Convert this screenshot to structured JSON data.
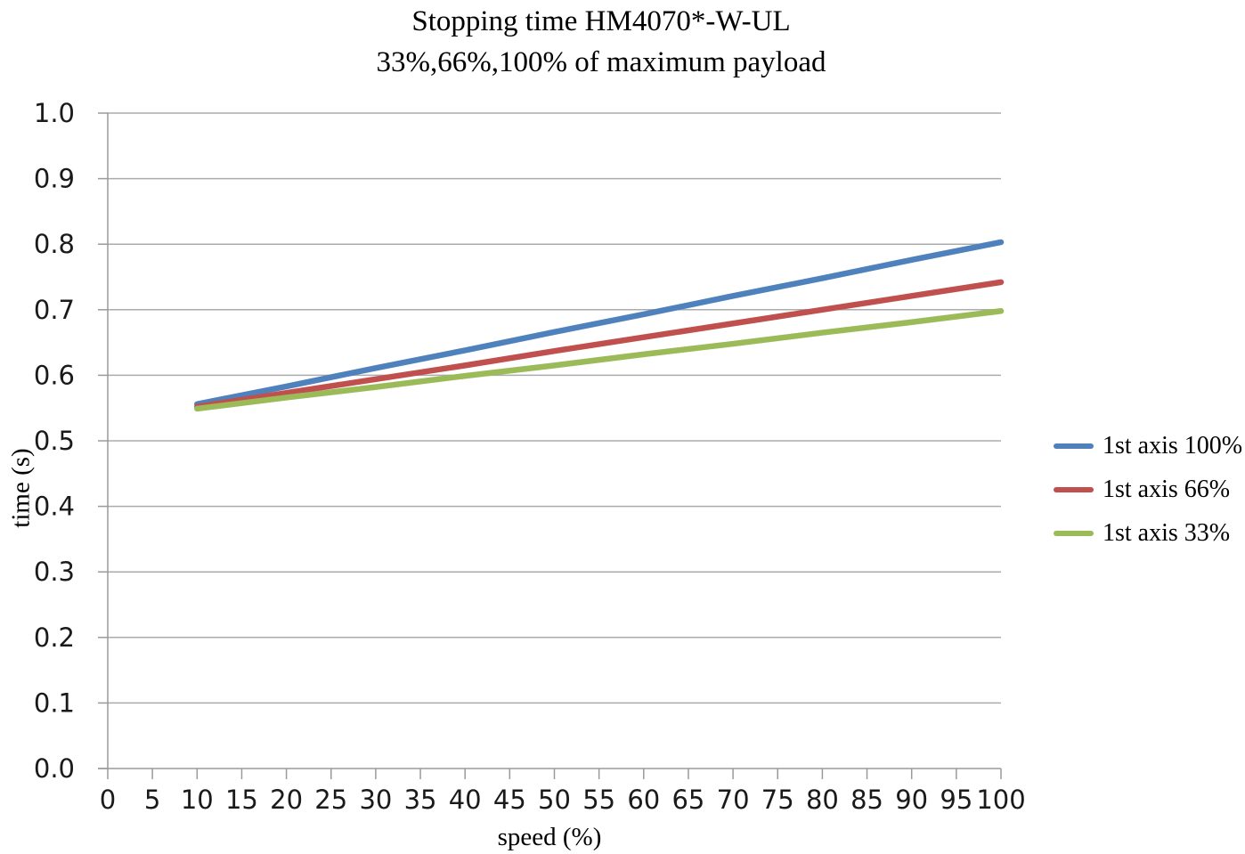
{
  "title": {
    "line1": "Stopping time HM4070*-W-UL",
    "line2": "33%,66%,100% of maximum payload"
  },
  "colors": {
    "gridline": "#ABABAB",
    "axis": "#9A9A9A",
    "tick_text": "#1a1a1a",
    "background": "#ffffff"
  },
  "chart_data": {
    "type": "line",
    "title": "Stopping time HM4070*-W-UL",
    "subtitle": "33%,66%,100% of maximum payload",
    "xlabel": "speed (%)",
    "ylabel": "time (s)",
    "xlim": [
      0,
      100
    ],
    "ylim": [
      0.0,
      1.0
    ],
    "grid": "horizontal",
    "legend_position": "right",
    "x_tick_values": [
      0,
      5,
      10,
      15,
      20,
      25,
      30,
      35,
      40,
      45,
      50,
      55,
      60,
      65,
      70,
      75,
      80,
      85,
      90,
      95,
      100
    ],
    "x_tick_labels": [
      "0",
      "5",
      "10",
      "15",
      "20",
      "25",
      "30",
      "35",
      "40",
      "45",
      "50",
      "55",
      "60",
      "65",
      "70",
      "75",
      "80",
      "85",
      "90",
      "95",
      "100"
    ],
    "y_tick_values": [
      0.0,
      0.1,
      0.2,
      0.3,
      0.4,
      0.5,
      0.6,
      0.7,
      0.8,
      0.9,
      1.0
    ],
    "y_tick_labels": [
      "0.0",
      "0.1",
      "0.2",
      "0.3",
      "0.4",
      "0.5",
      "0.6",
      "0.7",
      "0.8",
      "0.9",
      "1.0"
    ],
    "x": [
      10,
      20,
      30,
      40,
      50,
      60,
      70,
      80,
      90,
      100
    ],
    "series": [
      {
        "name": "1st axis 100%",
        "color": "#4F81BD",
        "values": [
          0.556,
          0.583,
          0.611,
          0.638,
          0.666,
          0.693,
          0.721,
          0.748,
          0.776,
          0.803
        ]
      },
      {
        "name": "1st axis 66%",
        "color": "#C0504D",
        "values": [
          0.552,
          0.573,
          0.594,
          0.615,
          0.637,
          0.658,
          0.679,
          0.7,
          0.721,
          0.742
        ]
      },
      {
        "name": "1st axis 33%",
        "color": "#9BBB59",
        "values": [
          0.549,
          0.566,
          0.582,
          0.599,
          0.615,
          0.632,
          0.648,
          0.665,
          0.681,
          0.698
        ]
      }
    ]
  }
}
